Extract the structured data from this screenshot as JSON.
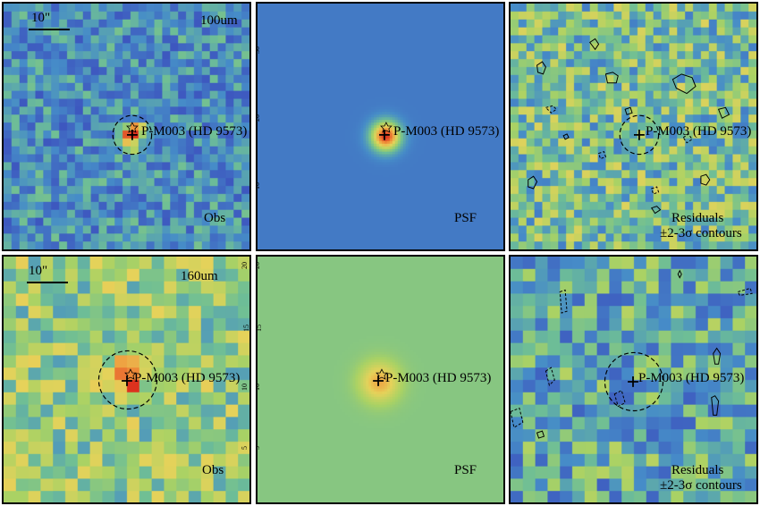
{
  "source_name": "P-M003 (HD 9573)",
  "scale_label": "10\"",
  "rows": [
    {
      "band": "100um",
      "panels": [
        {
          "kind": "obs",
          "caption": "Obs"
        },
        {
          "kind": "psf",
          "caption": "PSF"
        },
        {
          "kind": "res",
          "caption": "Residuals",
          "caption2": "±2-3σ contours"
        }
      ]
    },
    {
      "band": "160um",
      "panels": [
        {
          "kind": "obs",
          "caption": "Obs"
        },
        {
          "kind": "psf",
          "caption": "PSF"
        },
        {
          "kind": "res",
          "caption": "Residuals",
          "caption2": "±2-3σ contours"
        }
      ]
    }
  ],
  "colors": {
    "blue": "#4a72c4",
    "green": "#8ec46e",
    "yellow": "#e8d060",
    "orange": "#f0a040",
    "red": "#e04020",
    "purple": "#6a2a8a"
  },
  "axis_ticks_labels": {
    "psf_100_right": [
      "30",
      "20",
      "10"
    ],
    "obs_160_right": [
      "20",
      "15",
      "10",
      "5"
    ],
    "psf_160_left": [
      "20",
      "15",
      "10",
      "5"
    ]
  }
}
